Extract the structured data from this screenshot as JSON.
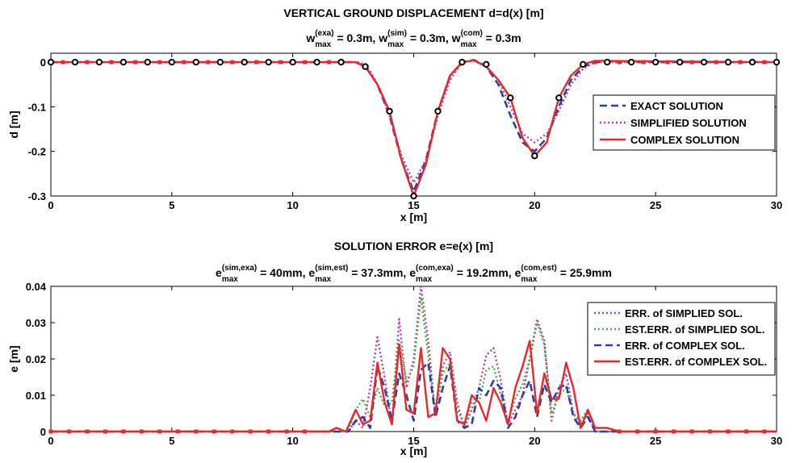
{
  "chart_data": [
    {
      "type": "line",
      "title": "VERTICAL GROUND DISPLACEMENT d=d(x) [m]",
      "subtitle_parts": [
        {
          "base": "w",
          "sup": "(exa)",
          "sub": "max",
          "rest": " = 0.3m, "
        },
        {
          "base": "w",
          "sup": "(sim)",
          "sub": "max",
          "rest": " = 0.3m, "
        },
        {
          "base": "w",
          "sup": "(com)",
          "sub": "max",
          "rest": " = 0.3m"
        }
      ],
      "xlabel": "x [m]",
      "ylabel": "d [m]",
      "xlim": [
        0,
        30
      ],
      "ylim": [
        -0.3,
        0.02
      ],
      "xticks": [
        "0",
        "5",
        "10",
        "15",
        "20",
        "25",
        "30"
      ],
      "yticks": [
        "0",
        "-0.1",
        "-0.2",
        "-0.3"
      ],
      "ytick_values": [
        0,
        -0.1,
        -0.2,
        -0.3
      ],
      "legend_position": "right",
      "series": [
        {
          "name": "EXACT SOLUTION",
          "style": "dashed",
          "color": "#2b3fa8",
          "x": [
            0,
            12.6,
            13.0,
            13.5,
            14.0,
            14.5,
            15.0,
            15.5,
            16.0,
            16.5,
            17.0,
            17.5,
            18.0,
            18.5,
            19.0,
            19.5,
            20.0,
            20.5,
            21.0,
            21.5,
            22.0,
            22.5,
            30
          ],
          "y": [
            0,
            0,
            -0.01,
            -0.05,
            -0.12,
            -0.22,
            -0.29,
            -0.22,
            -0.11,
            -0.03,
            0.0,
            0.005,
            -0.01,
            -0.05,
            -0.12,
            -0.18,
            -0.2,
            -0.17,
            -0.1,
            -0.04,
            -0.01,
            0,
            0
          ]
        },
        {
          "name": "SIMPLIFIED SOLUTION",
          "style": "dotted",
          "color": "#b43aa8",
          "x": [
            0,
            12.8,
            13.2,
            13.6,
            14.0,
            14.5,
            15.0,
            15.5,
            16.0,
            16.5,
            17.0,
            17.5,
            18.0,
            18.5,
            19.0,
            19.5,
            20.0,
            20.5,
            21.0,
            21.5,
            22.0,
            22.5,
            30
          ],
          "y": [
            0,
            0,
            -0.02,
            -0.06,
            -0.12,
            -0.21,
            -0.27,
            -0.22,
            -0.12,
            -0.04,
            0.0,
            0.003,
            -0.01,
            -0.04,
            -0.1,
            -0.16,
            -0.18,
            -0.16,
            -0.11,
            -0.05,
            -0.015,
            0,
            0
          ]
        },
        {
          "name": "COMPLEX SOLUTION",
          "style": "solid",
          "color": "#e8282a",
          "x": [
            0,
            12.6,
            13.0,
            13.5,
            14.0,
            14.5,
            15.0,
            15.5,
            16.0,
            16.5,
            17.0,
            17.5,
            18.0,
            18.5,
            19.0,
            19.5,
            20.0,
            20.5,
            21.0,
            21.5,
            22.0,
            22.5,
            30
          ],
          "y": [
            0,
            0,
            -0.01,
            -0.05,
            -0.11,
            -0.22,
            -0.3,
            -0.23,
            -0.11,
            -0.03,
            0.0,
            0.004,
            -0.01,
            -0.04,
            -0.08,
            -0.17,
            -0.21,
            -0.18,
            -0.08,
            -0.03,
            -0.005,
            0.003,
            0
          ]
        },
        {
          "name": "COMPLEX SOLUTION",
          "style": "markers",
          "color": "#000000",
          "x": [
            0,
            1,
            2,
            3,
            4,
            5,
            6,
            7,
            8,
            9,
            10,
            11,
            12,
            13,
            14,
            15,
            16,
            17,
            18,
            19,
            20,
            21,
            22,
            23,
            24,
            25,
            26,
            27,
            28,
            29,
            30
          ],
          "y": [
            0,
            0,
            0,
            0,
            0,
            0,
            0,
            0,
            0,
            0,
            0,
            0,
            0,
            -0.01,
            -0.11,
            -0.3,
            -0.11,
            0.0,
            -0.005,
            -0.08,
            -0.21,
            -0.08,
            -0.005,
            0,
            0,
            0,
            0,
            0,
            0,
            0,
            0
          ]
        }
      ]
    },
    {
      "type": "line",
      "title": "SOLUTION ERROR e=e(x) [m]",
      "subtitle_parts": [
        {
          "base": "e",
          "sup": "(sim,exa)",
          "sub": "max",
          "rest": " = 40mm, "
        },
        {
          "base": "e",
          "sup": "(sim,est)",
          "sub": "max",
          "rest": " = 37.3mm, "
        },
        {
          "base": "e",
          "sup": "(com,exa)",
          "sub": "max",
          "rest": " = 19.2mm, "
        },
        {
          "base": "e",
          "sup": "(com,est)",
          "sub": "max",
          "rest": " = 25.9mm"
        }
      ],
      "xlabel": "x [m]",
      "ylabel": "e [m]",
      "xlim": [
        0,
        30
      ],
      "ylim": [
        0,
        0.04
      ],
      "xticks": [
        "0",
        "5",
        "10",
        "15",
        "20",
        "25",
        "30"
      ],
      "yticks": [
        "0",
        "0.01",
        "0.02",
        "0.03",
        "0.04"
      ],
      "ytick_values": [
        0,
        0.01,
        0.02,
        0.03,
        0.04
      ],
      "legend_position": "right",
      "series": [
        {
          "name": "ERR. of SIMPLIED SOL.",
          "style": "dotted",
          "color": "#b43aa8",
          "x": [
            0,
            12.3,
            12.6,
            12.9,
            13.2,
            13.5,
            13.8,
            14.1,
            14.4,
            14.7,
            15.0,
            15.3,
            15.6,
            15.9,
            16.2,
            16.5,
            16.8,
            17.1,
            17.4,
            17.7,
            18.0,
            18.3,
            18.6,
            18.9,
            19.2,
            19.5,
            19.8,
            20.1,
            20.4,
            20.7,
            21.0,
            21.3,
            21.6,
            21.9,
            22.2,
            22.5,
            30
          ],
          "y": [
            0,
            0,
            0.003,
            0.001,
            0.012,
            0.026,
            0.015,
            0.002,
            0.031,
            0.012,
            0.02,
            0.04,
            0.025,
            0.004,
            0.018,
            0.022,
            0.008,
            0.001,
            0.006,
            0.012,
            0.021,
            0.023,
            0.014,
            0.002,
            0.006,
            0.01,
            0.02,
            0.031,
            0.025,
            0.003,
            0.012,
            0.016,
            0.005,
            0.002,
            0.005,
            0.0,
            0
          ]
        },
        {
          "name": "EST.ERR. of SIMPLIED SOL.",
          "style": "dotted",
          "color": "#3fb33f",
          "x": [
            0,
            12.3,
            12.6,
            12.9,
            13.2,
            13.5,
            13.8,
            14.1,
            14.4,
            14.7,
            15.0,
            15.3,
            15.6,
            15.9,
            16.2,
            16.5,
            16.8,
            17.1,
            17.4,
            17.7,
            18.0,
            18.3,
            18.6,
            18.9,
            19.2,
            19.5,
            19.8,
            20.1,
            20.4,
            20.7,
            21.0,
            21.3,
            21.6,
            21.9,
            22.2,
            22.5,
            30
          ],
          "y": [
            0,
            0,
            0.006,
            0.009,
            0.004,
            0.012,
            0.007,
            0.008,
            0.025,
            0.014,
            0.018,
            0.037,
            0.021,
            0.005,
            0.016,
            0.019,
            0.006,
            0.002,
            0.008,
            0.008,
            0.017,
            0.018,
            0.01,
            0.003,
            0.009,
            0.013,
            0.02,
            0.03,
            0.024,
            0.005,
            0.01,
            0.012,
            0.005,
            0.003,
            0.006,
            0.0,
            0
          ]
        },
        {
          "name": "ERR. of COMPLEX SOL.",
          "style": "dashed",
          "color": "#2b3fa8",
          "x": [
            0,
            12.3,
            12.6,
            12.9,
            13.2,
            13.5,
            13.8,
            14.1,
            14.4,
            14.7,
            15.0,
            15.3,
            15.6,
            15.9,
            16.2,
            16.5,
            16.8,
            17.1,
            17.4,
            17.7,
            18.0,
            18.3,
            18.6,
            18.9,
            19.2,
            19.5,
            19.8,
            20.1,
            20.4,
            20.7,
            21.0,
            21.3,
            21.6,
            21.9,
            22.2,
            22.5,
            30
          ],
          "y": [
            0,
            0,
            0.003,
            0.004,
            0.001,
            0.018,
            0.012,
            0.003,
            0.016,
            0.01,
            0.003,
            0.017,
            0.019,
            0.004,
            0.012,
            0.018,
            0.003,
            0.001,
            0.002,
            0.012,
            0.01,
            0.014,
            0.012,
            0.001,
            0.004,
            0.01,
            0.014,
            0.004,
            0.013,
            0.008,
            0.012,
            0.013,
            0.004,
            0.001,
            0.004,
            0.0,
            0
          ]
        },
        {
          "name": "EST.ERR. of COMPLEX SOL.",
          "style": "solid",
          "color": "#e8282a",
          "x": [
            0,
            11.5,
            11.8,
            12.2,
            12.6,
            12.9,
            13.2,
            13.5,
            13.8,
            14.1,
            14.4,
            14.7,
            15.0,
            15.3,
            15.6,
            15.9,
            16.2,
            16.5,
            16.8,
            17.1,
            17.4,
            17.7,
            18.0,
            18.3,
            18.6,
            18.9,
            19.2,
            19.5,
            19.8,
            20.1,
            20.4,
            20.7,
            21.0,
            21.3,
            21.6,
            21.9,
            22.2,
            22.5,
            23.0,
            23.5,
            30
          ],
          "y": [
            0,
            0,
            0.001,
            0.0,
            0.006,
            0.002,
            0.003,
            0.019,
            0.008,
            0.002,
            0.024,
            0.006,
            0.005,
            0.023,
            0.004,
            0.005,
            0.023,
            0.02,
            0.003,
            0.002,
            0.01,
            0.008,
            0.003,
            0.012,
            0.008,
            0.002,
            0.012,
            0.018,
            0.025,
            0.005,
            0.016,
            0.009,
            0.009,
            0.019,
            0.012,
            0.001,
            0.006,
            0.001,
            0.001,
            0.0,
            0
          ]
        }
      ]
    }
  ]
}
